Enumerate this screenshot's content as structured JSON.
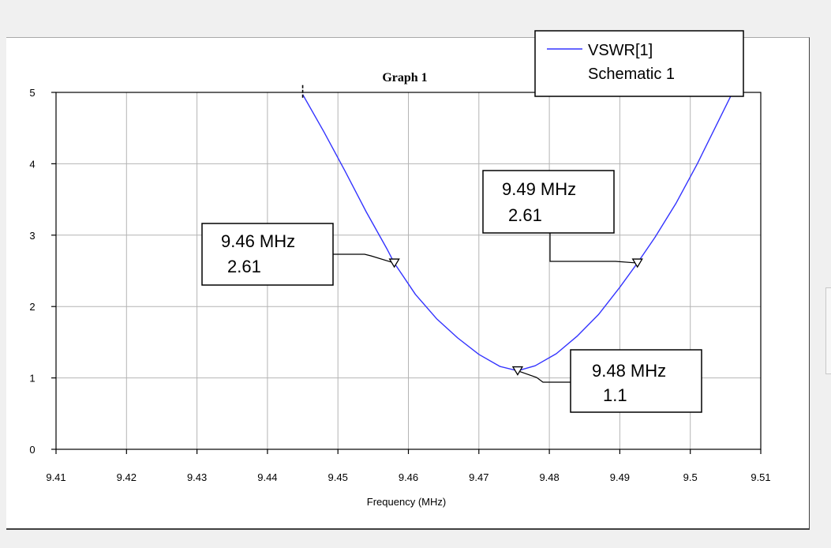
{
  "chart_data": {
    "type": "line",
    "title": "Graph 1",
    "xlabel": "Frequency (MHz)",
    "ylabel": "",
    "xlim": [
      9.41,
      9.51
    ],
    "ylim": [
      0,
      5
    ],
    "x_ticks": [
      "9.41",
      "9.42",
      "9.43",
      "9.44",
      "9.45",
      "9.46",
      "9.47",
      "9.48",
      "9.49",
      "9.5",
      "9.51"
    ],
    "y_ticks": [
      "0",
      "1",
      "2",
      "3",
      "4",
      "5"
    ],
    "grid": true,
    "legend": {
      "placement": "top-right",
      "entries": [
        {
          "name": "VSWR[1]",
          "source": "Schematic 1",
          "color": "#3333ff"
        }
      ]
    },
    "series": [
      {
        "name": "VSWR[1]",
        "color": "#3333ff",
        "x": [
          9.445,
          9.448,
          9.451,
          9.454,
          9.457,
          9.458,
          9.461,
          9.464,
          9.467,
          9.47,
          9.473,
          9.4755,
          9.478,
          9.481,
          9.484,
          9.487,
          9.49,
          9.4925,
          9.495,
          9.498,
          9.501,
          9.504,
          9.506
        ],
        "y": [
          4.97,
          4.45,
          3.9,
          3.33,
          2.8,
          2.61,
          2.17,
          1.83,
          1.56,
          1.33,
          1.16,
          1.1,
          1.17,
          1.34,
          1.59,
          1.89,
          2.27,
          2.61,
          2.97,
          3.45,
          4.0,
          4.6,
          5.0
        ]
      }
    ],
    "markers": [
      {
        "x": 9.458,
        "y": 2.61,
        "freq_label": "9.46 MHz",
        "value_label": "2.61"
      },
      {
        "x": 9.4925,
        "y": 2.61,
        "freq_label": "9.49 MHz",
        "value_label": "2.61"
      },
      {
        "x": 9.4755,
        "y": 1.1,
        "freq_label": "9.48 MHz",
        "value_label": "1.1"
      }
    ]
  }
}
